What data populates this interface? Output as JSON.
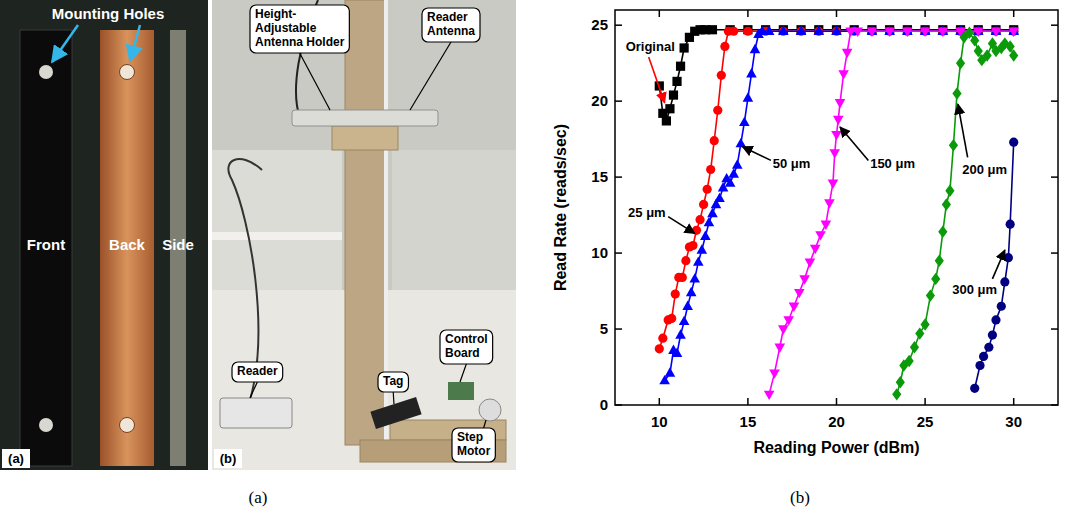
{
  "photo": {
    "a": {
      "label": "(a)",
      "heading": "Mounting Holes",
      "parts": [
        "Front",
        "Back",
        "Side"
      ]
    },
    "b": {
      "label": "(b)",
      "callouts": [
        "Height-Adjustable Antenna Holder",
        "Reader Antenna",
        "Reader",
        "Control Board",
        "Tag",
        "Step Motor"
      ]
    }
  },
  "captions": [
    "(a)",
    "(b)"
  ],
  "chart_data": {
    "type": "scatter",
    "x_label": "Reading Power (dBm)",
    "y_label": "Read Rate (reads/sec)",
    "xlim": [
      7.5,
      32.5
    ],
    "xticks": [
      10,
      15,
      20,
      25,
      30
    ],
    "ylim": [
      0,
      26
    ],
    "yticks": [
      0,
      5,
      10,
      15,
      20,
      25
    ],
    "grid": false,
    "series": [
      {
        "name": "Original",
        "color": "#000000",
        "marker": "square",
        "line_style": "solid",
        "x": [
          10,
          10.2,
          10.4,
          10.6,
          10.8,
          11,
          11.2,
          11.4,
          11.7,
          12,
          12.3,
          12.6,
          13,
          14,
          15,
          16,
          17,
          18,
          19,
          20,
          21,
          22,
          23,
          24,
          25,
          26,
          27,
          28,
          29,
          30
        ],
        "values": [
          21,
          19.2,
          18.7,
          19.5,
          20.4,
          21.3,
          22.3,
          23.5,
          24.2,
          24.6,
          24.7,
          24.7,
          24.7,
          24.7,
          24.7,
          24.7,
          24.7,
          24.7,
          24.7,
          24.7,
          24.7,
          24.7,
          24.7,
          24.7,
          24.7,
          24.7,
          24.7,
          24.7,
          24.7,
          24.7
        ]
      },
      {
        "name": "25 μm",
        "color": "#ff0000",
        "marker": "circle",
        "line_style": "solid",
        "x": [
          10,
          10.2,
          10.5,
          10.7,
          10.9,
          11.1,
          11.3,
          11.5,
          11.7,
          11.9,
          12.1,
          12.3,
          12.5,
          12.7,
          12.9,
          13.1,
          13.3,
          13.5,
          13.7,
          13.9,
          14.2,
          15,
          16,
          17,
          18,
          19,
          20,
          21,
          22,
          23,
          24,
          25,
          26,
          27,
          28,
          29,
          30
        ],
        "values": [
          3.7,
          4.4,
          5.6,
          5.7,
          7.3,
          8.4,
          8.4,
          9.5,
          10.4,
          10.5,
          11.5,
          12.2,
          13.2,
          14.2,
          15.5,
          17.4,
          19.4,
          21.7,
          23.6,
          24.6,
          24.6,
          24.6,
          24.6,
          24.6,
          24.6,
          24.6,
          24.6,
          24.6,
          24.6,
          24.6,
          24.6,
          24.6,
          24.6,
          24.6,
          24.6,
          24.6,
          24.6
        ]
      },
      {
        "name": "50 μm",
        "color": "#0000ff",
        "marker": "triangle-up",
        "line_style": "solid",
        "x": [
          10.3,
          10.6,
          10.8,
          11,
          11.2,
          11.4,
          11.6,
          11.8,
          12,
          12.2,
          12.4,
          12.6,
          12.8,
          13,
          13.2,
          13.4,
          13.6,
          13.8,
          14,
          14.2,
          14.4,
          14.6,
          14.8,
          15,
          15.2,
          15.4,
          15.6,
          15.8,
          16.2,
          17,
          18,
          19,
          20,
          21,
          22,
          23,
          24,
          25,
          26,
          27,
          28,
          29,
          30
        ],
        "values": [
          1.6,
          2.1,
          3.6,
          3.4,
          4.6,
          5.5,
          6.5,
          7.4,
          8.3,
          9.4,
          10.2,
          11.1,
          12,
          12.6,
          13.2,
          13.6,
          14.3,
          14.9,
          14.6,
          15.2,
          15.8,
          17.2,
          18.6,
          20.2,
          21.8,
          23.4,
          24.4,
          24.6,
          24.6,
          24.6,
          24.6,
          24.6,
          24.6,
          24.6,
          24.6,
          24.6,
          24.6,
          24.6,
          24.6,
          24.6,
          24.6,
          24.6,
          24.6
        ]
      },
      {
        "name": "150 μm",
        "color": "#ff00ff",
        "marker": "triangle-down",
        "line_style": "solid",
        "x": [
          16.2,
          16.5,
          16.8,
          17,
          17.3,
          17.6,
          17.9,
          18.2,
          18.5,
          18.8,
          19.1,
          19.4,
          19.6,
          19.8,
          19.9,
          20,
          20.1,
          20.2,
          20.4,
          20.6,
          20.8,
          21.2,
          22,
          23,
          24,
          25,
          26,
          27,
          28,
          29,
          30
        ],
        "values": [
          0.7,
          2.1,
          3.8,
          5,
          5.6,
          6.5,
          7.4,
          8.3,
          9.4,
          10.3,
          11.2,
          11.9,
          13.3,
          14.6,
          16.6,
          17.8,
          18.8,
          19.9,
          21.8,
          23.2,
          24.6,
          24.6,
          24.6,
          24.6,
          24.6,
          24.6,
          24.6,
          24.6,
          24.6,
          24.6,
          24.6
        ]
      },
      {
        "name": "200 μm",
        "color": "#0a9a0a",
        "marker": "diamond",
        "line_style": "solid",
        "x": [
          23.4,
          23.6,
          23.8,
          24.1,
          24.4,
          24.7,
          25,
          25.3,
          25.6,
          25.8,
          26,
          26.2,
          26.4,
          26.6,
          26.8,
          27,
          27.2,
          27.5,
          27.8,
          28,
          28.2,
          28.5,
          28.8,
          29,
          29.3,
          29.5,
          29.8,
          30
        ],
        "values": [
          0.7,
          1.5,
          2.6,
          2.9,
          3.8,
          4.7,
          5.3,
          7.2,
          8.3,
          9.5,
          11.4,
          13.2,
          14.1,
          17.1,
          20.5,
          22.5,
          24.2,
          24.5,
          24,
          23.3,
          22.7,
          23,
          23.8,
          23.3,
          23.5,
          23.8,
          23.6,
          23
        ]
      },
      {
        "name": "300 μm",
        "color": "#000080",
        "marker": "circle",
        "line_style": "solid",
        "x": [
          27.8,
          28.1,
          28.3,
          28.6,
          28.8,
          29,
          29.3,
          29.5,
          29.7,
          29.8,
          30
        ],
        "values": [
          1.1,
          2.6,
          3.2,
          3.8,
          4.6,
          5.6,
          6.5,
          8.1,
          9.7,
          11.9,
          17.3
        ]
      }
    ]
  }
}
